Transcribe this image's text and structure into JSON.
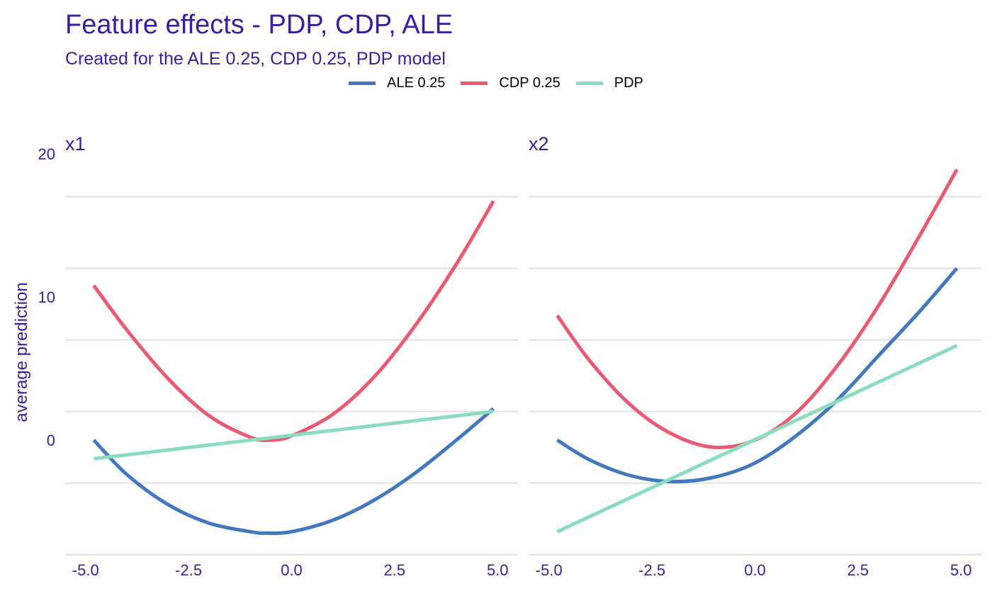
{
  "title": "Feature effects - PDP, CDP, ALE",
  "subtitle": "Created for the ALE 0.25, CDP 0.25, PDP model",
  "legend": [
    {
      "label": "ALE 0.25",
      "color": "#4378bf"
    },
    {
      "label": "CDP 0.25",
      "color": "#ea5a72"
    },
    {
      "label": "PDP",
      "color": "#8bdcbe"
    }
  ],
  "chart_data": {
    "type": "line",
    "ylabel": "average prediction",
    "ylim": [
      -8,
      20
    ],
    "yticks": [
      0,
      10,
      20
    ],
    "xticks": [
      -5.0,
      -2.5,
      0.0,
      2.5,
      5.0
    ],
    "grid": true,
    "legend_position": "top",
    "panels": [
      {
        "name": "x1",
        "xlim": [
          -5.0,
          5.0
        ],
        "series": [
          {
            "name": "ALE 0.25",
            "color": "#4378bf",
            "x": [
              -4.8,
              -4.0,
              -3.0,
              -2.0,
              -1.0,
              -0.6,
              0.0,
              1.0,
              2.0,
              3.0,
              4.0,
              4.9
            ],
            "y": [
              0.0,
              -2.4,
              -4.5,
              -5.8,
              -6.4,
              -6.5,
              -6.4,
              -5.6,
              -4.2,
              -2.3,
              0.0,
              2.2
            ]
          },
          {
            "name": "CDP 0.25",
            "color": "#ea5a72",
            "x": [
              -4.8,
              -4.0,
              -3.0,
              -2.0,
              -1.0,
              -0.5,
              0.0,
              1.0,
              2.0,
              3.0,
              4.0,
              4.9
            ],
            "y": [
              10.8,
              7.7,
              4.3,
              1.7,
              0.2,
              0.0,
              0.3,
              1.8,
              4.4,
              8.0,
              12.3,
              16.7
            ]
          },
          {
            "name": "PDP",
            "color": "#8bdcbe",
            "x": [
              -4.8,
              4.9
            ],
            "y": [
              -1.3,
              2.0
            ]
          }
        ]
      },
      {
        "name": "x2",
        "xlim": [
          -5.0,
          5.0
        ],
        "series": [
          {
            "name": "ALE 0.25",
            "color": "#4378bf",
            "x": [
              -4.8,
              -4.0,
              -3.0,
              -2.0,
              -1.0,
              0.0,
              1.0,
              2.0,
              3.0,
              4.0,
              4.9
            ],
            "y": [
              0.0,
              -1.4,
              -2.5,
              -2.9,
              -2.6,
              -1.6,
              0.3,
              2.8,
              5.9,
              9.0,
              12.0
            ]
          },
          {
            "name": "CDP 0.25",
            "color": "#ea5a72",
            "x": [
              -4.8,
              -4.0,
              -3.0,
              -2.0,
              -1.0,
              0.0,
              1.0,
              2.0,
              3.0,
              4.0,
              4.9
            ],
            "y": [
              8.7,
              5.5,
              2.4,
              0.4,
              -0.5,
              0.0,
              1.9,
              5.2,
              9.4,
              14.3,
              18.9
            ]
          },
          {
            "name": "PDP",
            "color": "#8bdcbe",
            "x": [
              -4.8,
              4.9
            ],
            "y": [
              -6.4,
              6.6
            ]
          }
        ]
      }
    ]
  }
}
